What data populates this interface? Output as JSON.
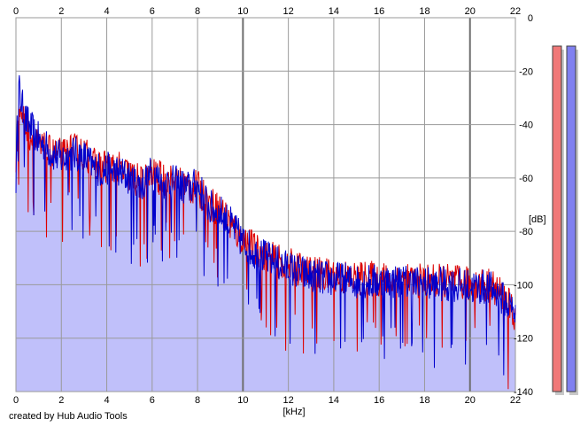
{
  "chart_data": {
    "type": "area",
    "xlabel": "[kHz]",
    "ylabel": "[dB]",
    "xlim": [
      0,
      22
    ],
    "ylim": [
      -140,
      0
    ],
    "x_ticks": [
      "0",
      "2",
      "4",
      "6",
      "8",
      "10",
      "12",
      "14",
      "16",
      "18",
      "20",
      "22"
    ],
    "y_ticks": [
      "0",
      "-20",
      "-40",
      "-60",
      "-80",
      "-100",
      "-120",
      "-140"
    ],
    "grid": true,
    "fill_color": "#c0c0fa",
    "series": [
      {
        "color": "#0000cc",
        "x": [
          0,
          0.1,
          0.2,
          0.4,
          0.7,
          1,
          1.5,
          2,
          2.5,
          3,
          3.5,
          4,
          4.5,
          5,
          5.5,
          6,
          6.5,
          7,
          7.5,
          8,
          8.5,
          9,
          9.5,
          10,
          10.5,
          11,
          12,
          13,
          14,
          15,
          16,
          17,
          18,
          19,
          20,
          20.5,
          21,
          21.5,
          22
        ],
        "values": [
          -60,
          -25,
          -30,
          -38,
          -42,
          -46,
          -50,
          -53,
          -51,
          -52,
          -57,
          -57,
          -58,
          -60,
          -63,
          -58,
          -62,
          -62,
          -64,
          -63,
          -71,
          -73,
          -78,
          -84,
          -88,
          -90,
          -94,
          -97,
          -98,
          -99,
          -99,
          -99,
          -100,
          -100,
          -101,
          -101,
          -102,
          -106,
          -110
        ]
      },
      {
        "color": "#dd0000",
        "x": [
          0,
          0.1,
          0.2,
          0.4,
          0.7,
          1,
          1.5,
          2,
          2.5,
          3,
          3.5,
          4,
          4.5,
          5,
          5.5,
          6,
          6.5,
          7,
          7.5,
          8,
          8.5,
          9,
          9.5,
          10,
          10.5,
          11,
          12,
          13,
          14,
          15,
          16,
          17,
          18,
          19,
          20,
          20.5,
          21,
          21.5,
          22
        ],
        "values": [
          -61,
          -30,
          -34,
          -40,
          -45,
          -49,
          -51,
          -52,
          -50,
          -51,
          -56,
          -56,
          -57,
          -59,
          -62,
          -59,
          -61,
          -62,
          -63,
          -64,
          -70,
          -72,
          -78,
          -83,
          -87,
          -90,
          -93,
          -96,
          -97,
          -98,
          -98,
          -99,
          -99,
          -99,
          -100,
          -100,
          -101,
          -105,
          -112
        ]
      }
    ]
  },
  "meters": {
    "left_level": -140,
    "right_level": -140,
    "left_color": "#f07878",
    "right_color": "#8080f0"
  },
  "credit": "created by Hub Audio Tools"
}
